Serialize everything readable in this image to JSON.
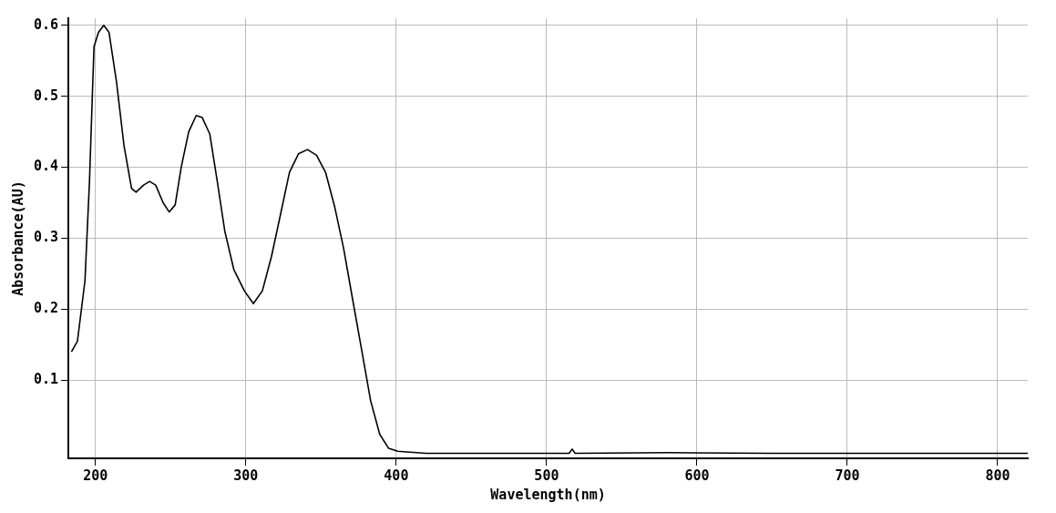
{
  "chart_data": {
    "type": "line",
    "xlabel": "Wavelength(nm)",
    "ylabel": "Absorbance(AU)",
    "color": "#000000",
    "x": [
      184,
      188,
      193,
      196,
      199,
      202,
      205.5,
      209,
      214,
      219,
      224,
      227,
      232,
      236,
      240,
      245,
      249,
      253,
      257,
      262,
      267,
      271,
      276,
      281,
      286,
      292,
      299,
      305,
      311,
      317,
      323,
      329,
      335,
      341,
      347,
      353,
      359,
      365,
      371,
      377,
      383,
      389,
      395,
      401,
      420,
      480,
      515,
      517,
      519,
      580,
      650,
      720,
      820
    ],
    "values": [
      0.14,
      0.155,
      0.24,
      0.38,
      0.57,
      0.59,
      0.6,
      0.59,
      0.52,
      0.43,
      0.37,
      0.365,
      0.375,
      0.38,
      0.375,
      0.35,
      0.337,
      0.347,
      0.4,
      0.45,
      0.473,
      0.47,
      0.447,
      0.38,
      0.31,
      0.256,
      0.226,
      0.208,
      0.226,
      0.274,
      0.333,
      0.393,
      0.419,
      0.425,
      0.417,
      0.393,
      0.345,
      0.286,
      0.214,
      0.143,
      0.071,
      0.024,
      0.004,
      0.0,
      -0.003,
      -0.003,
      -0.003,
      0.003,
      -0.003,
      -0.002,
      -0.003,
      -0.003,
      -0.003
    ],
    "xlim": [
      182,
      820
    ],
    "xticks": [
      200,
      300,
      400,
      500,
      600,
      700,
      800
    ],
    "ylim": [
      -0.01,
      0.61
    ],
    "yticks": [
      0.1,
      0.2,
      0.3,
      0.4,
      0.5,
      0.6
    ],
    "grid": true,
    "marker": "none",
    "line_style": "solid"
  }
}
